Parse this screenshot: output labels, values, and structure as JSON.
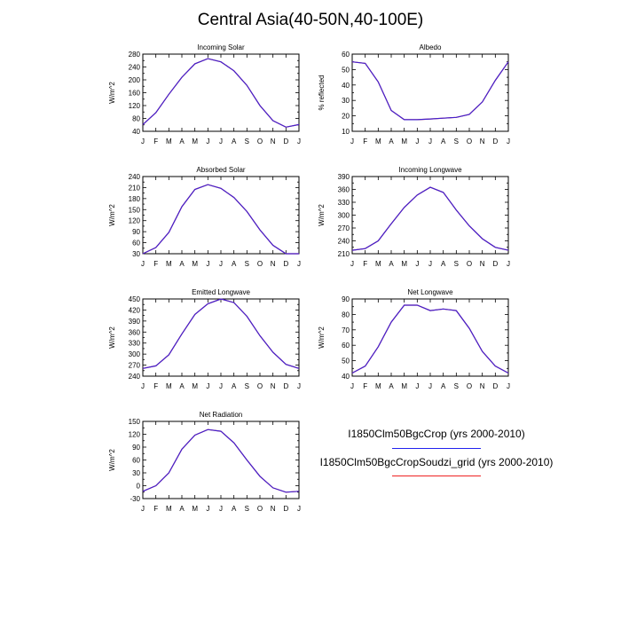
{
  "title": "Central Asia(40-50N,40-100E)",
  "months": [
    "J",
    "F",
    "M",
    "A",
    "M",
    "J",
    "J",
    "A",
    "S",
    "O",
    "N",
    "D",
    "J"
  ],
  "chart_data": [
    {
      "type": "line",
      "title": "Incoming Solar",
      "ylabel": "W/m^2",
      "ylim": [
        40,
        280
      ],
      "yticks": [
        40,
        60,
        80,
        100,
        120,
        140,
        160,
        180,
        200,
        220,
        240,
        260,
        280
      ],
      "ylabels": [
        "40",
        "80",
        "120",
        "160",
        "200",
        "240",
        "280"
      ],
      "series": [
        {
          "name": "I1850Clm50BgcCrop (yrs 2000-2010)",
          "values": [
            61,
            98,
            155,
            208,
            250,
            266,
            256,
            228,
            183,
            120,
            73,
            53,
            61
          ]
        },
        {
          "name": "I1850Clm50BgcCropSoudzi_grid (yrs 2000-2010)",
          "values": [
            61,
            98,
            155,
            208,
            250,
            266,
            256,
            228,
            183,
            120,
            73,
            53,
            61
          ]
        }
      ]
    },
    {
      "type": "line",
      "title": "Albedo",
      "ylabel": "% reflected",
      "ylim": [
        10,
        60
      ],
      "yticks": [
        10,
        15,
        20,
        25,
        30,
        35,
        40,
        45,
        50,
        55,
        60
      ],
      "ylabels": [
        "10",
        "20",
        "30",
        "40",
        "50",
        "60"
      ],
      "series": [
        {
          "name": "I1850Clm50BgcCrop (yrs 2000-2010)",
          "values": [
            55,
            54,
            42,
            23.5,
            17.5,
            17.5,
            18,
            18.5,
            19,
            21,
            29,
            43,
            55
          ]
        },
        {
          "name": "I1850Clm50BgcCropSoudzi_grid (yrs 2000-2010)",
          "values": [
            55,
            54,
            42,
            23.5,
            17.5,
            17.5,
            18,
            18.5,
            19,
            21,
            29,
            43,
            55
          ]
        }
      ]
    },
    {
      "type": "line",
      "title": "Absorbed Solar",
      "ylabel": "W/m^2",
      "ylim": [
        30,
        240
      ],
      "yticks": [
        30,
        45,
        60,
        75,
        90,
        105,
        120,
        135,
        150,
        165,
        180,
        195,
        210,
        225,
        240
      ],
      "ylabels": [
        "30",
        "60",
        "90",
        "120",
        "150",
        "180",
        "210",
        "240"
      ],
      "series": [
        {
          "name": "I1850Clm50BgcCrop (yrs 2000-2010)",
          "values": [
            30,
            47,
            88,
            158,
            205,
            218,
            208,
            183,
            145,
            95,
            53,
            30,
            30
          ]
        },
        {
          "name": "I1850Clm50BgcCropSoudzi_grid (yrs 2000-2010)",
          "values": [
            30,
            47,
            88,
            158,
            205,
            218,
            208,
            183,
            145,
            95,
            53,
            30,
            30
          ]
        }
      ]
    },
    {
      "type": "line",
      "title": "Incoming Longwave",
      "ylabel": "W/m^2",
      "ylim": [
        210,
        390
      ],
      "yticks": [
        210,
        225,
        240,
        255,
        270,
        285,
        300,
        315,
        330,
        345,
        360,
        375,
        390
      ],
      "ylabels": [
        "210",
        "240",
        "270",
        "300",
        "330",
        "360",
        "390"
      ],
      "series": [
        {
          "name": "I1850Clm50BgcCrop (yrs 2000-2010)",
          "values": [
            218,
            222,
            240,
            280,
            318,
            347,
            365,
            353,
            312,
            275,
            245,
            225,
            218
          ]
        },
        {
          "name": "I1850Clm50BgcCropSoudzi_grid (yrs 2000-2010)",
          "values": [
            218,
            222,
            240,
            280,
            318,
            347,
            365,
            353,
            312,
            275,
            245,
            225,
            218
          ]
        }
      ]
    },
    {
      "type": "line",
      "title": "Emitted Longwave",
      "ylabel": "W/m^2",
      "ylim": [
        240,
        450
      ],
      "yticks": [
        240,
        255,
        270,
        285,
        300,
        315,
        330,
        345,
        360,
        375,
        390,
        405,
        420,
        435,
        450
      ],
      "ylabels": [
        "240",
        "270",
        "300",
        "330",
        "360",
        "390",
        "420",
        "450"
      ],
      "series": [
        {
          "name": "I1850Clm50BgcCrop (yrs 2000-2010)",
          "values": [
            261,
            268,
            298,
            355,
            408,
            437,
            450,
            440,
            403,
            350,
            305,
            272,
            261
          ]
        },
        {
          "name": "I1850Clm50BgcCropSoudzi_grid (yrs 2000-2010)",
          "values": [
            261,
            268,
            298,
            355,
            408,
            437,
            450,
            440,
            403,
            350,
            305,
            272,
            261
          ]
        }
      ]
    },
    {
      "type": "line",
      "title": "Net Longwave",
      "ylabel": "W/m^2",
      "ylim": [
        40,
        90
      ],
      "yticks": [
        40,
        45,
        50,
        55,
        60,
        65,
        70,
        75,
        80,
        85,
        90
      ],
      "ylabels": [
        "40",
        "50",
        "60",
        "70",
        "80",
        "90"
      ],
      "series": [
        {
          "name": "I1850Clm50BgcCrop (yrs 2000-2010)",
          "values": [
            42,
            46.5,
            59,
            75,
            86,
            86,
            82.5,
            83.5,
            82.5,
            71,
            56,
            46.5,
            42
          ]
        },
        {
          "name": "I1850Clm50BgcCropSoudzi_grid (yrs 2000-2010)",
          "values": [
            42,
            46.5,
            59,
            75,
            86,
            86,
            82.5,
            83.5,
            82.5,
            71,
            56,
            46.5,
            42
          ]
        }
      ]
    },
    {
      "type": "line",
      "title": "Net Radiation",
      "ylabel": "W/m^2",
      "ylim": [
        -30,
        150
      ],
      "yticks": [
        -30,
        -15,
        0,
        15,
        30,
        45,
        60,
        75,
        90,
        105,
        120,
        135,
        150
      ],
      "ylabels": [
        "-30",
        "0",
        "30",
        "60",
        "90",
        "120",
        "150"
      ],
      "series": [
        {
          "name": "I1850Clm50BgcCrop (yrs 2000-2010)",
          "values": [
            -13,
            0,
            30,
            85,
            118,
            131,
            127,
            100,
            60,
            22,
            -5,
            -15,
            -13
          ]
        },
        {
          "name": "I1850Clm50BgcCropSoudzi_grid (yrs 2000-2010)",
          "values": [
            -13,
            0,
            30,
            85,
            118,
            131,
            127,
            100,
            60,
            22,
            -5,
            -15,
            -13
          ]
        }
      ]
    }
  ],
  "legend": [
    {
      "label": "I1850Clm50BgcCrop (yrs 2000-2010)",
      "color": "#2222ee"
    },
    {
      "label": "I1850Clm50BgcCropSoudzi_grid (yrs 2000-2010)",
      "color": "#ee2222"
    }
  ]
}
